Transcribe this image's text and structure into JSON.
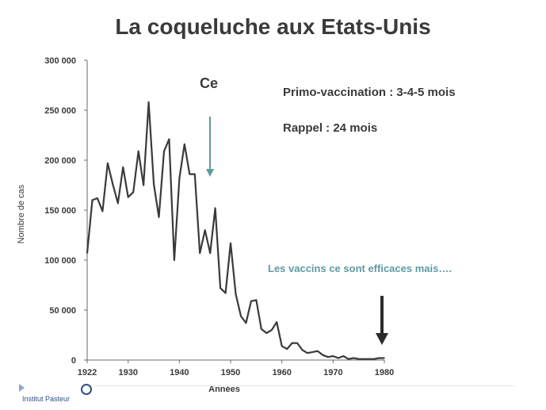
{
  "slide": {
    "title": "La coqueluche aux Etats-Unis",
    "annotation_ce": "Ce",
    "primo": "Primo-vaccination : 3-4-5 mois",
    "rappel": "Rappel : 24 mois",
    "note": "Les vaccins ce sont efficaces mais….",
    "logo_text": "Institut Pasteur"
  },
  "colors": {
    "line": "#3a3a3a",
    "teal": "#5f9aa0",
    "text": "#3a3a3a",
    "arrow_dark": "#2b2b2b"
  },
  "chart_data": {
    "type": "line",
    "title": "",
    "xlabel": "Années",
    "ylabel": "Nombre de cas",
    "xlim": [
      1922,
      1980
    ],
    "ylim": [
      0,
      300000
    ],
    "x_ticks": [
      1922,
      1930,
      1940,
      1950,
      1960,
      1970,
      1980
    ],
    "x_tick_labels": [
      "1922",
      "1930",
      "1940",
      "1950",
      "1960",
      "1970",
      "1980"
    ],
    "y_ticks": [
      0,
      50000,
      100000,
      150000,
      200000,
      250000,
      300000
    ],
    "y_tick_labels": [
      "0",
      "50 000",
      "100 000",
      "150 000",
      "200 000",
      "250 000",
      "300 000"
    ],
    "grid": false,
    "series": [
      {
        "x": [
          1922,
          1923,
          1924,
          1925,
          1926,
          1927,
          1928,
          1929,
          1930,
          1931,
          1932,
          1933,
          1934,
          1935,
          1936,
          1937,
          1938,
          1939,
          1940,
          1941,
          1942,
          1943,
          1944,
          1945,
          1946,
          1947,
          1948,
          1949,
          1950,
          1951,
          1952,
          1953,
          1954,
          1955,
          1956,
          1957,
          1958,
          1959,
          1960,
          1961,
          1962,
          1963,
          1964,
          1965,
          1966,
          1967,
          1968,
          1969,
          1970,
          1971,
          1972,
          1973,
          1974,
          1975,
          1976,
          1977,
          1978,
          1979,
          1980
        ],
        "y": [
          107000,
          160000,
          162000,
          149000,
          197000,
          176000,
          157000,
          193000,
          163000,
          168000,
          209000,
          175000,
          258000,
          176000,
          143000,
          209000,
          221000,
          100000,
          182000,
          216000,
          186000,
          186000,
          107000,
          130000,
          107000,
          152000,
          72000,
          67000,
          117000,
          66000,
          44000,
          37000,
          59000,
          60000,
          31000,
          27000,
          30000,
          38000,
          14000,
          11000,
          17000,
          17000,
          10000,
          7000,
          8000,
          9000,
          5000,
          3000,
          4000,
          2000,
          4000,
          1000,
          2000,
          1000,
          1000,
          1000,
          1000,
          2000,
          2000
        ]
      }
    ],
    "annotations": [
      {
        "text": "Ce",
        "arrow_to_x": 1948,
        "arrow_to_y": 185000
      },
      {
        "text": "",
        "arrow_to_x": 1980,
        "arrow_to_y": 15000
      }
    ]
  }
}
